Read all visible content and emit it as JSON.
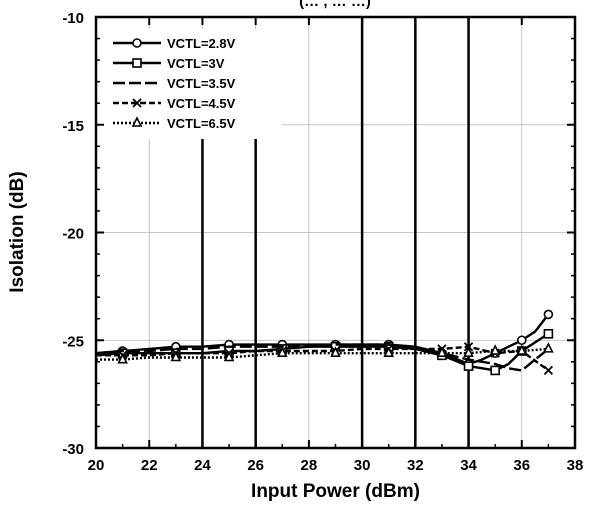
{
  "chart_data": {
    "type": "line",
    "title": "(… , … …)",
    "xlabel": "Input Power (dBm)",
    "ylabel": "Isolation (dB)",
    "xlim": [
      20,
      38
    ],
    "ylim": [
      -30,
      -10
    ],
    "x_ticks": [
      "20",
      "22",
      "24",
      "26",
      "28",
      "30",
      "32",
      "34",
      "36",
      "38"
    ],
    "y_ticks": [
      "-10",
      "-15",
      "-20",
      "-25",
      "-30"
    ],
    "grid": true,
    "legend_position": "top-left",
    "vertical_lines_x": [
      24,
      26,
      30,
      32,
      34
    ],
    "series": [
      {
        "name": "VCTL=2.8V",
        "marker": "circle",
        "dash": "solid",
        "x": [
          20,
          21,
          22,
          23,
          24,
          25,
          26,
          27,
          28,
          29,
          30,
          31,
          32,
          33,
          34,
          34.5,
          35,
          35.5,
          36,
          36.5,
          37
        ],
        "y": [
          -25.6,
          -25.5,
          -25.4,
          -25.3,
          -25.3,
          -25.2,
          -25.2,
          -25.2,
          -25.2,
          -25.2,
          -25.2,
          -25.2,
          -25.3,
          -25.6,
          -26.1,
          -25.9,
          -25.6,
          -25.3,
          -25.0,
          -24.6,
          -23.8
        ]
      },
      {
        "name": "VCTL=3V",
        "marker": "square",
        "dash": "solid",
        "x": [
          20,
          21,
          22,
          23,
          24,
          25,
          26,
          27,
          28,
          29,
          30,
          31,
          32,
          33,
          34,
          35,
          35.5,
          36,
          36.5,
          37
        ],
        "y": [
          -25.7,
          -25.6,
          -25.6,
          -25.6,
          -25.6,
          -25.5,
          -25.5,
          -25.4,
          -25.3,
          -25.3,
          -25.3,
          -25.3,
          -25.4,
          -25.7,
          -26.2,
          -26.4,
          -26.1,
          -25.5,
          -25.1,
          -24.7
        ]
      },
      {
        "name": "VCTL=3.5V",
        "marker": "none",
        "dash": "longdash",
        "x": [
          20,
          21,
          22,
          23,
          24,
          25,
          26,
          27,
          28,
          29,
          30,
          31,
          32,
          33,
          34,
          35,
          35.5,
          36,
          36.5,
          37
        ],
        "y": [
          -25.6,
          -25.5,
          -25.5,
          -25.4,
          -25.4,
          -25.3,
          -25.3,
          -25.3,
          -25.3,
          -25.2,
          -25.2,
          -25.2,
          -25.4,
          -25.6,
          -25.9,
          -26.1,
          -26.3,
          -26.4,
          -25.9,
          -25.4
        ]
      },
      {
        "name": "VCTL=4.5V",
        "marker": "x",
        "dash": "dash",
        "x": [
          20,
          21,
          22,
          23,
          24,
          25,
          26,
          27,
          28,
          29,
          30,
          31,
          32,
          33,
          34,
          35,
          36,
          37
        ],
        "y": [
          -25.7,
          -25.7,
          -25.7,
          -25.6,
          -25.6,
          -25.6,
          -25.5,
          -25.5,
          -25.5,
          -25.5,
          -25.4,
          -25.4,
          -25.4,
          -25.4,
          -25.3,
          -25.6,
          -25.5,
          -26.4
        ]
      },
      {
        "name": "VCTL=6.5V",
        "marker": "triangle",
        "dash": "dot",
        "x": [
          20,
          21,
          22,
          23,
          24,
          25,
          26,
          27,
          28,
          29,
          30,
          31,
          32,
          33,
          34,
          35,
          36,
          37
        ],
        "y": [
          -25.9,
          -25.9,
          -25.8,
          -25.8,
          -25.8,
          -25.8,
          -25.7,
          -25.6,
          -25.6,
          -25.6,
          -25.6,
          -25.6,
          -25.6,
          -25.6,
          -25.6,
          -25.5,
          -25.5,
          -25.4
        ]
      }
    ]
  }
}
